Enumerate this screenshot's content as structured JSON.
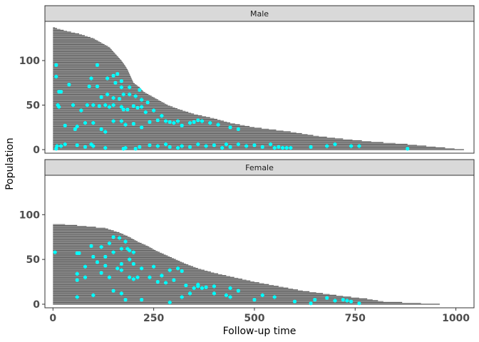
{
  "chart_data": {
    "type": "faceted-swimmer-scatter",
    "xlabel": "Follow-up time",
    "ylabel": "Population",
    "xlim": [
      -20,
      1045
    ],
    "xticks": [
      0,
      250,
      500,
      750,
      1000
    ],
    "yticks": [
      0,
      50,
      100
    ],
    "grid": false,
    "colors": {
      "bar": "#595959",
      "bar_alt": "#8c8c8c",
      "event": "#00ffff",
      "strip": "#d9d9d9",
      "frame": "#333333"
    },
    "panels": [
      {
        "label": "Male",
        "n": 138,
        "ylim": [
          -4,
          144
        ],
        "bar_end_by_population": [
          [
            0,
            1020
          ],
          [
            3,
            950
          ],
          [
            6,
            880
          ],
          [
            9,
            790
          ],
          [
            12,
            720
          ],
          [
            15,
            660
          ],
          [
            20,
            590
          ],
          [
            25,
            500
          ],
          [
            30,
            440
          ],
          [
            35,
            400
          ],
          [
            40,
            350
          ],
          [
            45,
            315
          ],
          [
            50,
            285
          ],
          [
            55,
            265
          ],
          [
            60,
            245
          ],
          [
            65,
            225
          ],
          [
            70,
            215
          ],
          [
            75,
            200
          ],
          [
            80,
            195
          ],
          [
            85,
            190
          ],
          [
            90,
            185
          ],
          [
            95,
            178
          ],
          [
            100,
            170
          ],
          [
            105,
            160
          ],
          [
            110,
            150
          ],
          [
            115,
            140
          ],
          [
            120,
            120
          ],
          [
            125,
            100
          ],
          [
            130,
            65
          ],
          [
            133,
            35
          ],
          [
            136,
            10
          ],
          [
            138,
            0
          ]
        ],
        "events": [
          [
            880,
            1
          ],
          [
            760,
            4
          ],
          [
            740,
            4
          ],
          [
            700,
            6
          ],
          [
            680,
            4
          ],
          [
            640,
            3
          ],
          [
            590,
            2
          ],
          [
            580,
            2
          ],
          [
            570,
            2
          ],
          [
            560,
            3
          ],
          [
            550,
            2
          ],
          [
            540,
            6
          ],
          [
            520,
            3
          ],
          [
            500,
            5
          ],
          [
            480,
            4
          ],
          [
            460,
            6
          ],
          [
            440,
            3
          ],
          [
            430,
            6
          ],
          [
            420,
            2
          ],
          [
            400,
            5
          ],
          [
            380,
            4
          ],
          [
            360,
            6
          ],
          [
            340,
            3
          ],
          [
            320,
            4
          ],
          [
            310,
            2
          ],
          [
            290,
            3
          ],
          [
            280,
            6
          ],
          [
            260,
            4
          ],
          [
            240,
            5
          ],
          [
            215,
            3
          ],
          [
            205,
            1
          ],
          [
            180,
            2
          ],
          [
            175,
            1
          ],
          [
            130,
            2
          ],
          [
            100,
            4
          ],
          [
            95,
            6
          ],
          [
            80,
            3
          ],
          [
            60,
            5
          ],
          [
            30,
            6
          ],
          [
            20,
            4
          ],
          [
            10,
            4
          ],
          [
            8,
            1
          ],
          [
            460,
            23
          ],
          [
            440,
            25
          ],
          [
            410,
            28
          ],
          [
            390,
            30
          ],
          [
            370,
            32
          ],
          [
            360,
            33
          ],
          [
            350,
            31
          ],
          [
            340,
            30
          ],
          [
            320,
            27
          ],
          [
            310,
            32
          ],
          [
            300,
            30
          ],
          [
            290,
            31
          ],
          [
            280,
            32
          ],
          [
            260,
            33
          ],
          [
            240,
            31
          ],
          [
            220,
            25
          ],
          [
            200,
            29
          ],
          [
            180,
            28
          ],
          [
            170,
            32
          ],
          [
            150,
            32
          ],
          [
            130,
            20
          ],
          [
            120,
            23
          ],
          [
            100,
            30
          ],
          [
            80,
            30
          ],
          [
            60,
            26
          ],
          [
            55,
            23
          ],
          [
            30,
            27
          ],
          [
            270,
            38
          ],
          [
            250,
            44
          ],
          [
            230,
            42
          ],
          [
            220,
            48
          ],
          [
            210,
            47
          ],
          [
            200,
            49
          ],
          [
            185,
            45
          ],
          [
            175,
            45
          ],
          [
            170,
            48
          ],
          [
            150,
            50
          ],
          [
            140,
            48
          ],
          [
            130,
            50
          ],
          [
            115,
            49
          ],
          [
            100,
            50
          ],
          [
            85,
            50
          ],
          [
            70,
            44
          ],
          [
            50,
            50
          ],
          [
            15,
            48
          ],
          [
            235,
            53
          ],
          [
            220,
            56
          ],
          [
            205,
            60
          ],
          [
            190,
            62
          ],
          [
            175,
            62
          ],
          [
            165,
            57
          ],
          [
            150,
            58
          ],
          [
            135,
            62
          ],
          [
            120,
            59
          ],
          [
            110,
            71
          ],
          [
            90,
            71
          ],
          [
            215,
            67
          ],
          [
            190,
            70
          ],
          [
            170,
            70
          ],
          [
            160,
            85
          ],
          [
            150,
            83
          ],
          [
            135,
            80
          ],
          [
            95,
            80
          ],
          [
            40,
            73
          ],
          [
            20,
            65
          ],
          [
            15,
            65
          ],
          [
            8,
            82
          ],
          [
            8,
            95
          ],
          [
            170,
            77
          ],
          [
            155,
            75
          ],
          [
            12,
            50
          ],
          [
            110,
            95
          ]
        ]
      },
      {
        "label": "Female",
        "n": 90,
        "ylim": [
          -4,
          144
        ],
        "bar_end_by_population": [
          [
            0,
            960
          ],
          [
            3,
            820
          ],
          [
            6,
            780
          ],
          [
            9,
            720
          ],
          [
            12,
            670
          ],
          [
            15,
            620
          ],
          [
            20,
            560
          ],
          [
            25,
            500
          ],
          [
            30,
            450
          ],
          [
            35,
            400
          ],
          [
            40,
            360
          ],
          [
            45,
            330
          ],
          [
            50,
            305
          ],
          [
            55,
            280
          ],
          [
            60,
            255
          ],
          [
            65,
            235
          ],
          [
            70,
            210
          ],
          [
            75,
            190
          ],
          [
            80,
            165
          ],
          [
            85,
            130
          ],
          [
            88,
            60
          ],
          [
            90,
            0
          ]
        ],
        "events": [
          [
            760,
            1
          ],
          [
            740,
            3
          ],
          [
            730,
            4
          ],
          [
            720,
            5
          ],
          [
            700,
            4
          ],
          [
            680,
            7
          ],
          [
            650,
            5
          ],
          [
            640,
            1
          ],
          [
            600,
            3
          ],
          [
            550,
            8
          ],
          [
            520,
            10
          ],
          [
            500,
            5
          ],
          [
            440,
            8
          ],
          [
            430,
            10
          ],
          [
            400,
            12
          ],
          [
            370,
            18
          ],
          [
            360,
            20
          ],
          [
            350,
            18
          ],
          [
            340,
            12
          ],
          [
            320,
            8
          ],
          [
            290,
            2
          ],
          [
            220,
            5
          ],
          [
            180,
            5
          ],
          [
            170,
            12
          ],
          [
            150,
            15
          ],
          [
            100,
            10
          ],
          [
            60,
            8
          ],
          [
            460,
            15
          ],
          [
            440,
            18
          ],
          [
            400,
            20
          ],
          [
            380,
            19
          ],
          [
            360,
            22
          ],
          [
            330,
            21
          ],
          [
            300,
            27
          ],
          [
            280,
            24
          ],
          [
            260,
            25
          ],
          [
            240,
            30
          ],
          [
            210,
            30
          ],
          [
            200,
            28
          ],
          [
            190,
            30
          ],
          [
            170,
            38
          ],
          [
            140,
            30
          ],
          [
            120,
            35
          ],
          [
            80,
            30
          ],
          [
            60,
            27
          ],
          [
            320,
            37
          ],
          [
            310,
            40
          ],
          [
            290,
            38
          ],
          [
            270,
            32
          ],
          [
            250,
            42
          ],
          [
            220,
            40
          ],
          [
            200,
            45
          ],
          [
            190,
            50
          ],
          [
            170,
            45
          ],
          [
            160,
            40
          ],
          [
            130,
            43
          ],
          [
            110,
            47
          ],
          [
            80,
            42
          ],
          [
            60,
            34
          ],
          [
            150,
            58
          ],
          [
            130,
            53
          ],
          [
            100,
            53
          ],
          [
            60,
            57
          ],
          [
            200,
            58
          ],
          [
            190,
            60
          ],
          [
            185,
            62
          ],
          [
            170,
            62
          ],
          [
            140,
            68
          ],
          [
            120,
            64
          ],
          [
            5,
            58
          ],
          [
            180,
            70
          ],
          [
            165,
            74
          ],
          [
            150,
            75
          ],
          [
            65,
            57
          ],
          [
            95,
            65
          ]
        ]
      }
    ]
  }
}
